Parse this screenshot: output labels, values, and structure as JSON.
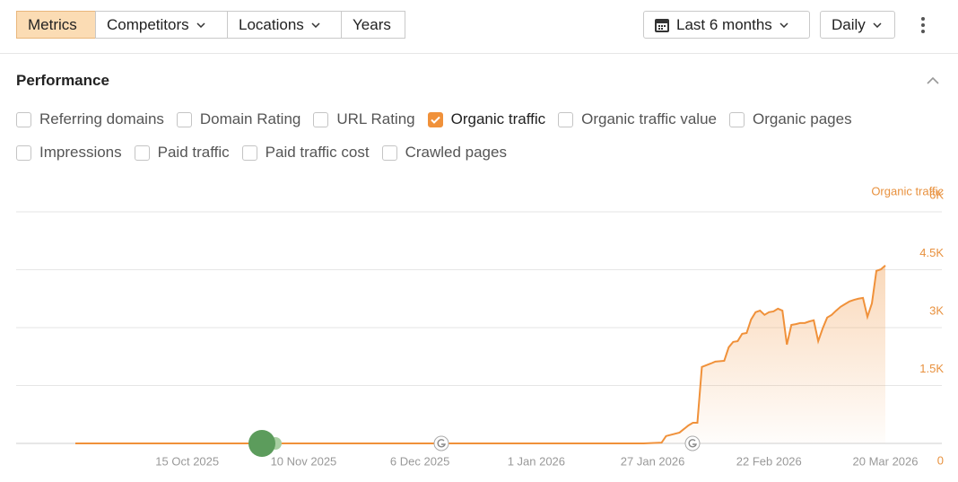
{
  "toolbar": {
    "tabs": [
      "Metrics",
      "Competitors",
      "Locations",
      "Years"
    ],
    "date_range": "Last 6 months",
    "interval": "Daily"
  },
  "performance": {
    "title": "Performance",
    "metrics": [
      {
        "label": "Referring domains",
        "checked": false
      },
      {
        "label": "Domain Rating",
        "checked": false
      },
      {
        "label": "URL Rating",
        "checked": false
      },
      {
        "label": "Organic traffic",
        "checked": true
      },
      {
        "label": "Organic traffic value",
        "checked": false
      },
      {
        "label": "Organic pages",
        "checked": false
      },
      {
        "label": "Impressions",
        "checked": false
      },
      {
        "label": "Paid traffic",
        "checked": false
      },
      {
        "label": "Paid traffic cost",
        "checked": false
      },
      {
        "label": "Crawled pages",
        "checked": false
      }
    ]
  },
  "chart_data": {
    "type": "area",
    "y_axis_label": "Organic traffic",
    "color": "#f0913a",
    "grid": true,
    "x": [
      "2025-09-20",
      "2026-01-25",
      "2026-01-29",
      "2026-01-30",
      "2026-02-02",
      "2026-02-04",
      "2026-02-05",
      "2026-02-06",
      "2026-02-07",
      "2026-02-09",
      "2026-02-10",
      "2026-02-12",
      "2026-02-13",
      "2026-02-14",
      "2026-02-15",
      "2026-02-16",
      "2026-02-17",
      "2026-02-18",
      "2026-02-19",
      "2026-02-20",
      "2026-02-21",
      "2026-02-22",
      "2026-02-23",
      "2026-02-24",
      "2026-02-25",
      "2026-02-26",
      "2026-02-27",
      "2026-02-28",
      "2026-03-01",
      "2026-03-02",
      "2026-03-03",
      "2026-03-04",
      "2026-03-05",
      "2026-03-06",
      "2026-03-07",
      "2026-03-08",
      "2026-03-09",
      "2026-03-10",
      "2026-03-11",
      "2026-03-12",
      "2026-03-13",
      "2026-03-14",
      "2026-03-15",
      "2026-03-16",
      "2026-03-17",
      "2026-03-18",
      "2026-03-19",
      "2026-03-20"
    ],
    "values": [
      0,
      0,
      20,
      190,
      280,
      465,
      535,
      535,
      1980,
      2070,
      2120,
      2140,
      2490,
      2630,
      2650,
      2840,
      2860,
      3210,
      3400,
      3440,
      3330,
      3400,
      3420,
      3490,
      3440,
      2560,
      3070,
      3090,
      3120,
      3120,
      3160,
      3190,
      2650,
      2980,
      3260,
      3330,
      3440,
      3540,
      3610,
      3680,
      3720,
      3750,
      3770,
      3280,
      3630,
      4470,
      4510,
      4610
    ],
    "xticks": [
      {
        "value": "2025-10-15",
        "label": "15 Oct 2025"
      },
      {
        "value": "2025-11-10",
        "label": "10 Nov 2025"
      },
      {
        "value": "2025-12-06",
        "label": "6 Dec 2025"
      },
      {
        "value": "2026-01-01",
        "label": "1 Jan 2026"
      },
      {
        "value": "2026-01-27",
        "label": "27 Jan 2026"
      },
      {
        "value": "2026-02-22",
        "label": "22 Feb 2026"
      },
      {
        "value": "2026-03-20",
        "label": "20 Mar 2026"
      }
    ],
    "ylim": [
      0,
      6000
    ],
    "yticks": [
      0,
      {
        "value": 1500,
        "label": "1.5K"
      },
      {
        "value": 3000,
        "label": "3K"
      },
      {
        "value": 4500,
        "label": "4.5K"
      },
      {
        "value": 6000,
        "label": "6K"
      }
    ]
  }
}
